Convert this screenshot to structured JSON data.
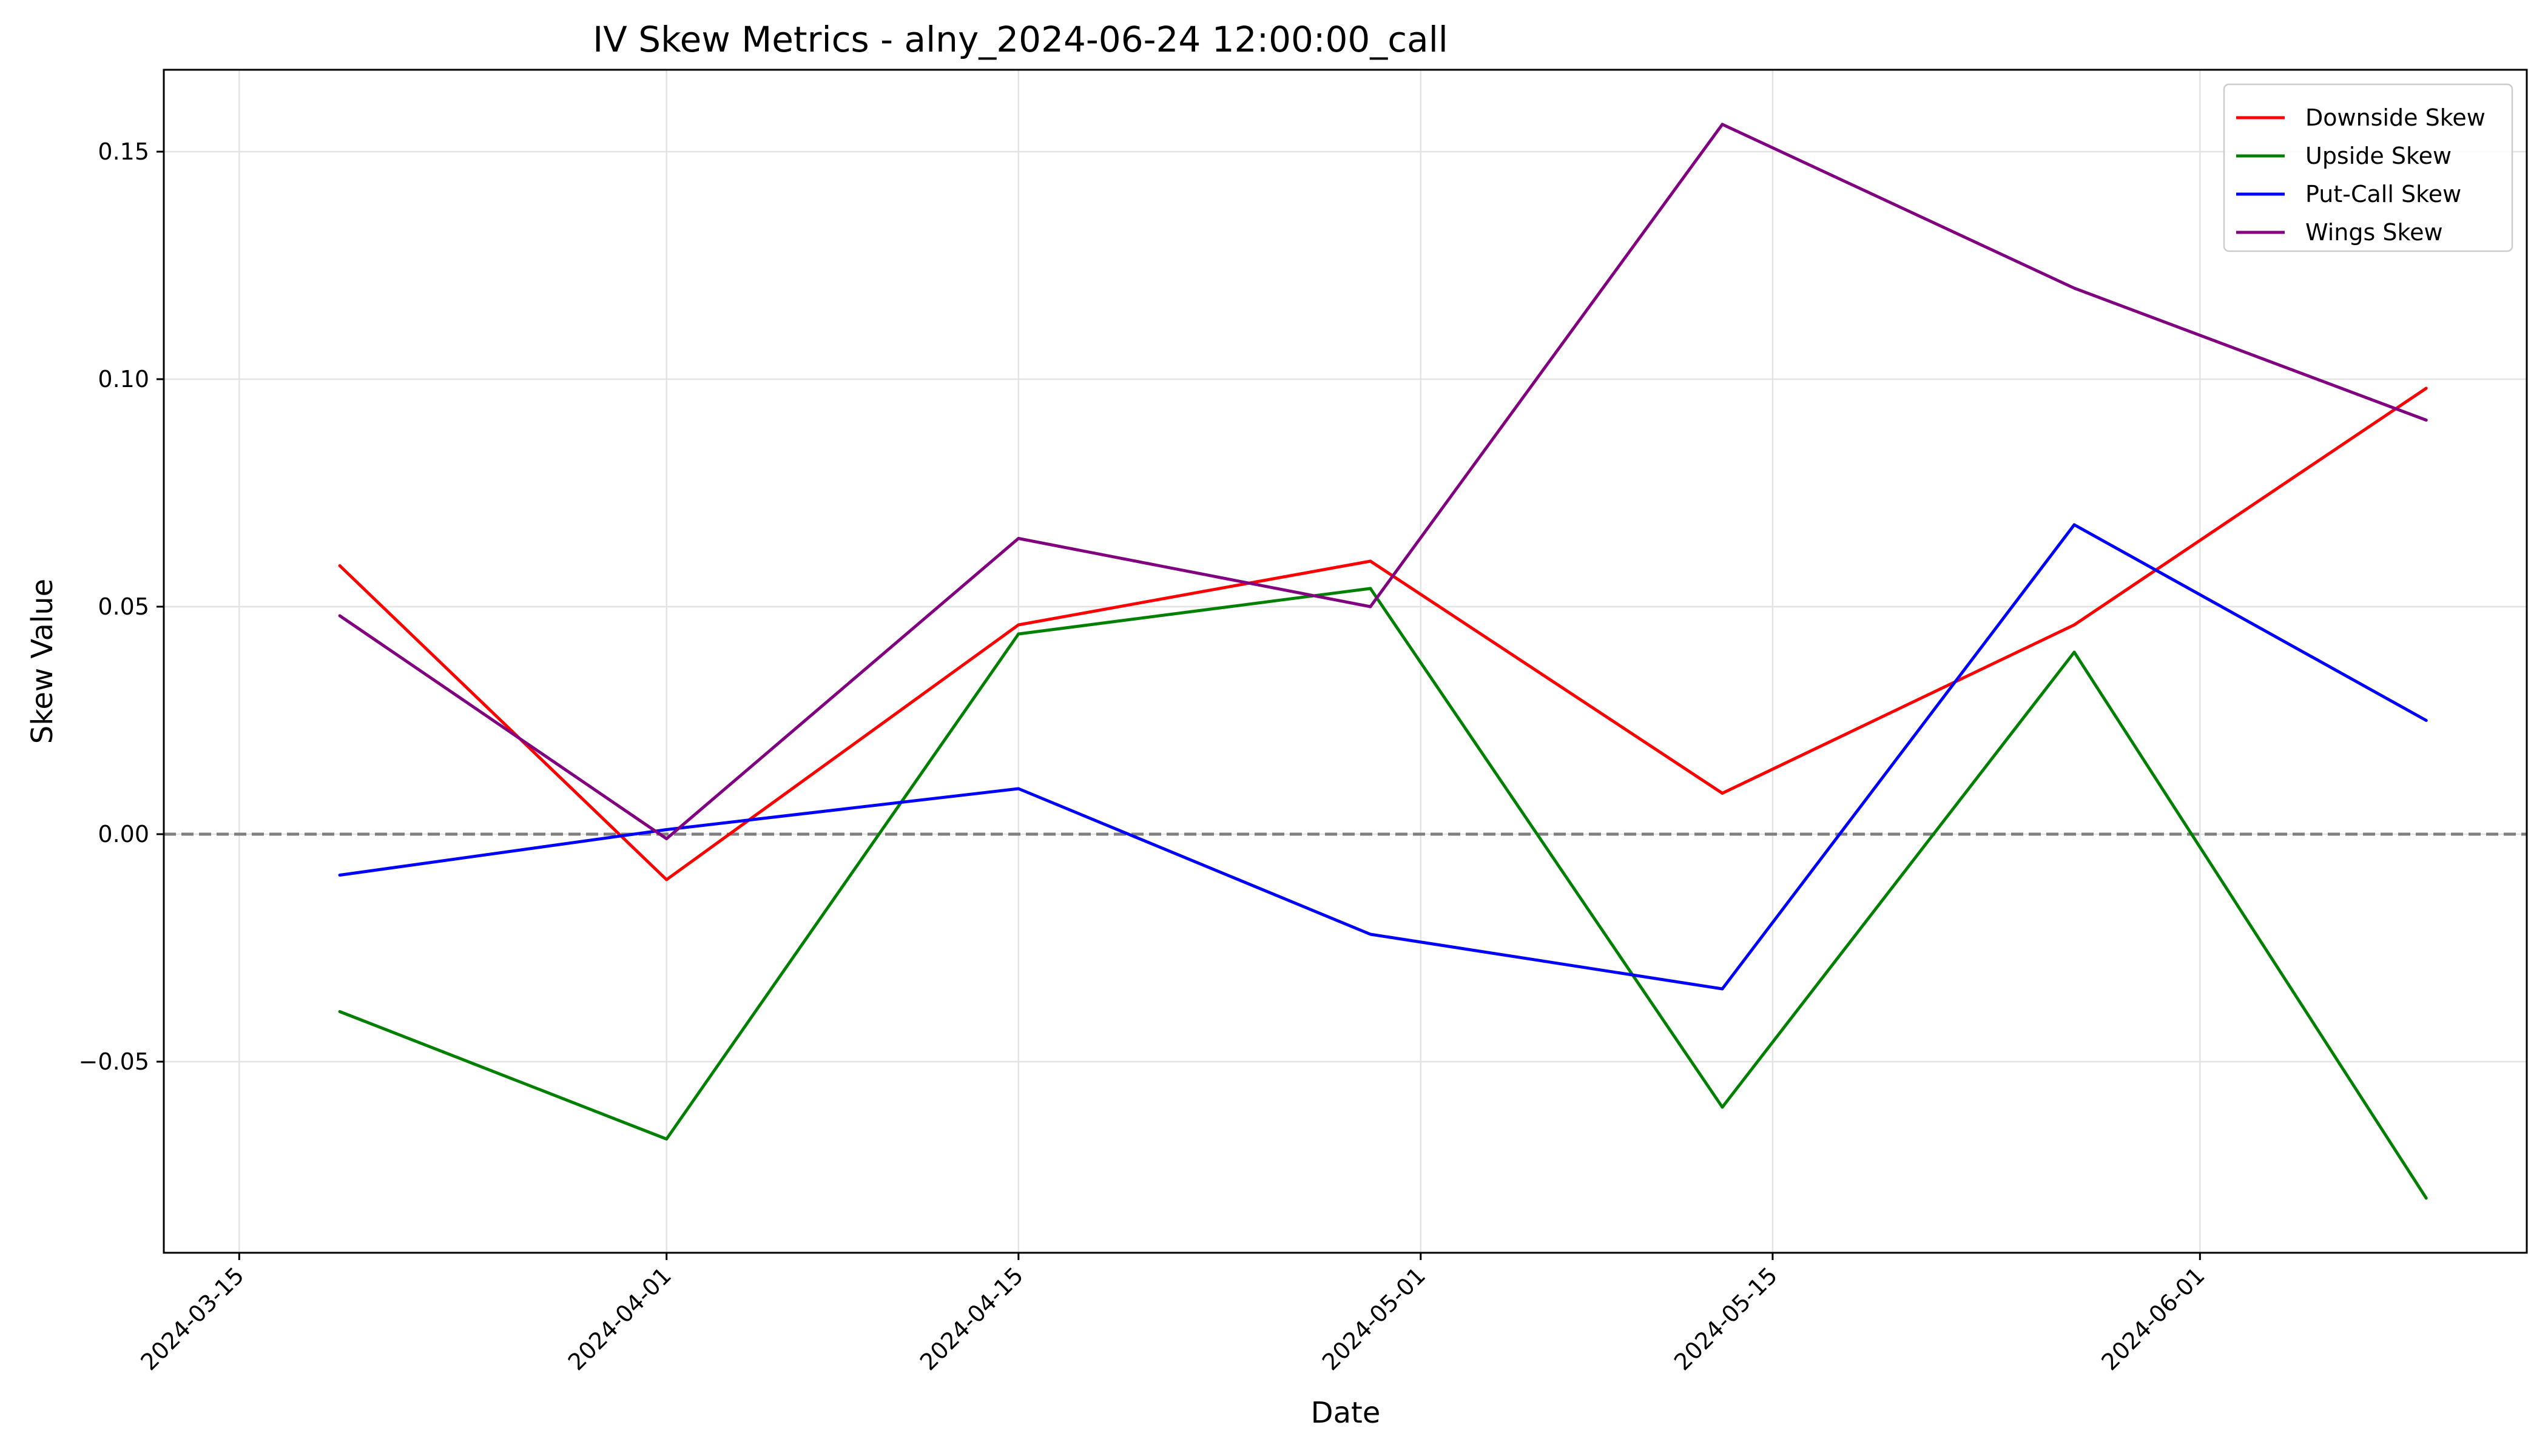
{
  "chart_data": {
    "type": "line",
    "title": "IV Skew Metrics - alny_2024-06-24 12:00:00_call",
    "xlabel": "Date",
    "ylabel": "Skew Value",
    "x": [
      "2024-03-19",
      "2024-04-01",
      "2024-04-15",
      "2024-04-29",
      "2024-05-13",
      "2024-05-27",
      "2024-06-10"
    ],
    "x_ticks": [
      "2024-03-15",
      "2024-04-01",
      "2024-04-15",
      "2024-05-01",
      "2024-05-15",
      "2024-06-01"
    ],
    "xlim": [
      "2024-03-12",
      "2024-06-14"
    ],
    "ylim": [
      -0.092,
      0.168
    ],
    "y_ticks": [
      -0.05,
      0.0,
      0.05,
      0.1,
      0.15
    ],
    "y_tick_labels": [
      "−0.05",
      "0.00",
      "0.05",
      "0.10",
      "0.15"
    ],
    "grid": true,
    "reference_line": {
      "y": 0,
      "style": "dashed",
      "color": "#808080"
    },
    "legend_position": "top-right",
    "series": [
      {
        "name": "Downside Skew",
        "color": "#ff0000",
        "values": [
          0.059,
          -0.01,
          0.046,
          0.06,
          0.009,
          0.046,
          0.098
        ]
      },
      {
        "name": "Upside Skew",
        "color": "#008000",
        "values": [
          -0.039,
          -0.067,
          0.044,
          0.054,
          -0.06,
          0.04,
          -0.08
        ]
      },
      {
        "name": "Put-Call Skew",
        "color": "#0000ff",
        "values": [
          -0.009,
          0.001,
          0.01,
          -0.022,
          -0.034,
          0.068,
          0.025
        ]
      },
      {
        "name": "Wings Skew",
        "color": "#800080",
        "values": [
          0.048,
          -0.001,
          0.065,
          0.05,
          0.156,
          0.12,
          0.091
        ]
      }
    ]
  }
}
